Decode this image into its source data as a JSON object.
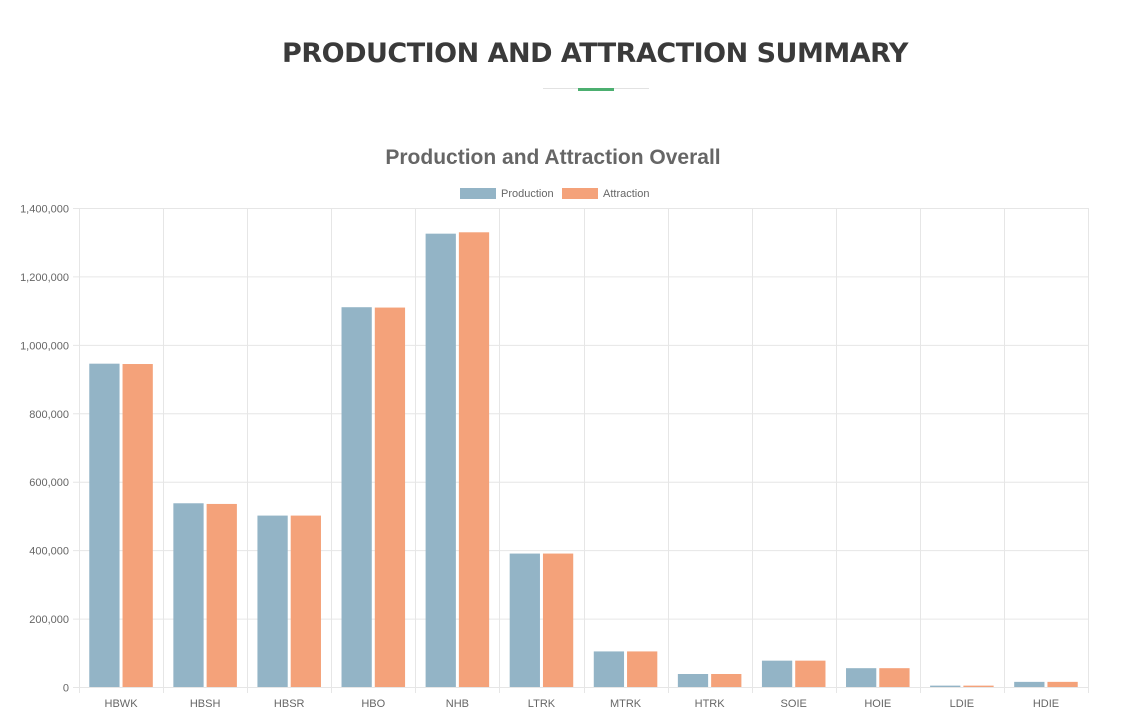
{
  "page": {
    "title": "PRODUCTION AND ATTRACTION SUMMARY"
  },
  "colors": {
    "production": "#93b4c6",
    "attraction": "#f4a27a",
    "accent": "#4caf70",
    "grid": "#e6e6e6",
    "tick_text": "#666666",
    "title_text": "#666666"
  },
  "chart_data": {
    "type": "bar",
    "title": "Production and Attraction Overall",
    "xlabel": "",
    "ylabel": "",
    "categories": [
      "HBWK",
      "HBSH",
      "HBSR",
      "HBO",
      "NHB",
      "LTRK",
      "MTRK",
      "HTRK",
      "SOIE",
      "HOIE",
      "LDIE",
      "HDIE"
    ],
    "series": [
      {
        "name": "Production",
        "values": [
          945000,
          537000,
          501000,
          1110000,
          1325000,
          390000,
          104000,
          38000,
          77000,
          55000,
          4000,
          15000
        ]
      },
      {
        "name": "Attraction",
        "values": [
          944000,
          535000,
          501000,
          1109000,
          1329000,
          390000,
          104000,
          38000,
          77000,
          55000,
          4000,
          15000
        ]
      }
    ],
    "ylim": [
      0,
      1400000
    ],
    "yticks": [
      0,
      200000,
      400000,
      600000,
      800000,
      1000000,
      1200000,
      1400000
    ],
    "ytick_labels": [
      "0",
      "200,000",
      "400,000",
      "600,000",
      "800,000",
      "1,000,000",
      "1,200,000",
      "1,400,000"
    ],
    "grid": true,
    "legend_position": "top-center"
  }
}
